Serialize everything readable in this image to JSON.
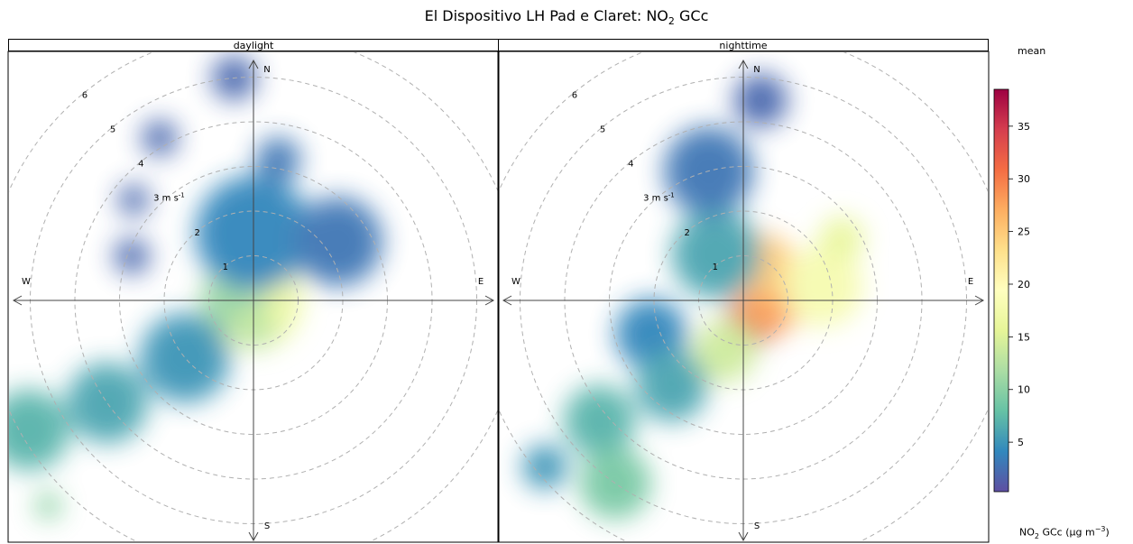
{
  "title": {
    "prefix": "El Dispositivo LH Pad e Claret: NO",
    "sub": "2",
    "suffix": " GCc"
  },
  "panels": [
    "daylight",
    "nighttime"
  ],
  "compass": {
    "n": "N",
    "s": "S",
    "e": "E",
    "w": "W"
  },
  "ring_labels": [
    "1",
    "2",
    "3 m s",
    "4",
    "5",
    "6"
  ],
  "ring_unit_sup": "-1",
  "legend": {
    "title": "mean",
    "unit_prefix": "NO",
    "unit_sub": "2",
    "unit_suffix": " GCc (μg m",
    "unit_sup": "−3",
    "unit_close": ")",
    "ticks": [
      5,
      10,
      15,
      20,
      25,
      30,
      35
    ],
    "min": 0.3,
    "max": 38.5
  },
  "colors": {
    "scale": [
      "#5e4fa2",
      "#3288bd",
      "#66c2a5",
      "#abdda4",
      "#e6f598",
      "#ffffbf",
      "#fee08b",
      "#fdae61",
      "#f46d43",
      "#d53e4f",
      "#9e0142"
    ],
    "grid": "#b0b0b0"
  },
  "chart_data": {
    "type": "polar",
    "r_unit": "m s-1",
    "r_rings": [
      1,
      2,
      3,
      4,
      5,
      6
    ],
    "color_range": [
      0.3,
      38.5
    ],
    "panels": [
      {
        "name": "daylight",
        "blobs": [
          {
            "ws": 0.0,
            "wd": 0,
            "radius_ms": 1.1,
            "value": 17
          },
          {
            "ws": 0.5,
            "wd": 270,
            "radius_ms": 0.7,
            "value": 11
          },
          {
            "ws": 0.6,
            "wd": 180,
            "radius_ms": 0.5,
            "value": 13
          },
          {
            "ws": 1.5,
            "wd": 0,
            "radius_ms": 1.3,
            "value": 4
          },
          {
            "ws": 3.2,
            "wd": 10,
            "radius_ms": 0.5,
            "value": 3
          },
          {
            "ws": 5.0,
            "wd": 355,
            "radius_ms": 0.5,
            "value": 2
          },
          {
            "ws": 2.3,
            "wd": 55,
            "radius_ms": 1.0,
            "value": 3
          },
          {
            "ws": 4.2,
            "wd": 330,
            "radius_ms": 0.4,
            "value": 2
          },
          {
            "ws": 3.5,
            "wd": 310,
            "radius_ms": 0.35,
            "value": 2
          },
          {
            "ws": 2.9,
            "wd": 290,
            "radius_ms": 0.4,
            "value": 2
          },
          {
            "ws": 2.0,
            "wd": 230,
            "radius_ms": 1.0,
            "value": 5
          },
          {
            "ws": 4.0,
            "wd": 235,
            "radius_ms": 0.9,
            "value": 6
          },
          {
            "ws": 5.8,
            "wd": 240,
            "radius_ms": 0.9,
            "value": 7
          },
          {
            "ws": 6.5,
            "wd": 225,
            "radius_ms": 0.3,
            "value": 10
          }
        ]
      },
      {
        "name": "nighttime",
        "blobs": [
          {
            "ws": 0.5,
            "wd": 160,
            "radius_ms": 0.55,
            "value": 37
          },
          {
            "ws": 0.6,
            "wd": 90,
            "radius_ms": 0.75,
            "value": 28
          },
          {
            "ws": 0.9,
            "wd": 30,
            "radius_ms": 0.7,
            "value": 25
          },
          {
            "ws": 1.8,
            "wd": 80,
            "radius_ms": 0.9,
            "value": 18
          },
          {
            "ws": 2.6,
            "wd": 58,
            "radius_ms": 0.5,
            "value": 16
          },
          {
            "ws": 1.2,
            "wd": 200,
            "radius_ms": 0.7,
            "value": 14
          },
          {
            "ws": 1.2,
            "wd": 330,
            "radius_ms": 1.0,
            "value": 6
          },
          {
            "ws": 3.0,
            "wd": 345,
            "radius_ms": 1.0,
            "value": 3
          },
          {
            "ws": 4.5,
            "wd": 5,
            "radius_ms": 0.6,
            "value": 2
          },
          {
            "ws": 2.2,
            "wd": 250,
            "radius_ms": 0.8,
            "value": 4
          },
          {
            "ws": 2.5,
            "wd": 220,
            "radius_ms": 0.8,
            "value": 6
          },
          {
            "ws": 4.2,
            "wd": 230,
            "radius_ms": 0.8,
            "value": 7
          },
          {
            "ws": 5.0,
            "wd": 215,
            "radius_ms": 0.8,
            "value": 9
          },
          {
            "ws": 5.8,
            "wd": 230,
            "radius_ms": 0.5,
            "value": 5
          }
        ]
      }
    ]
  }
}
